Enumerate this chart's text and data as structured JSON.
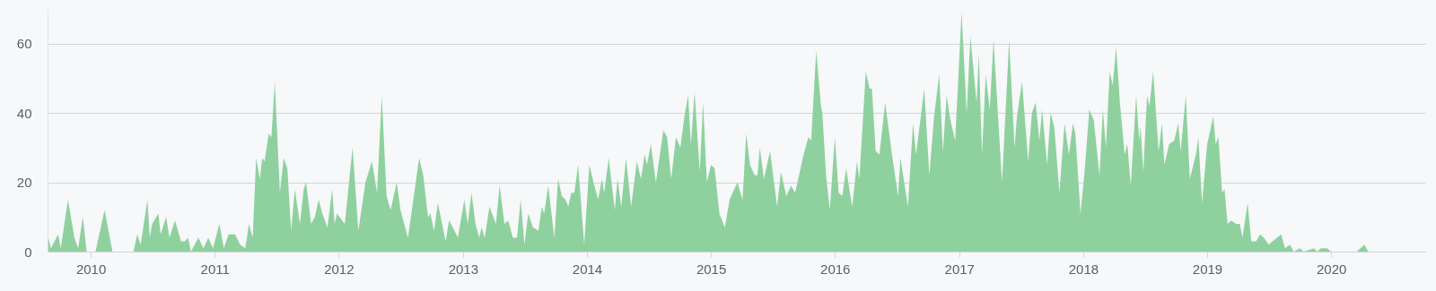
{
  "chart_data": {
    "type": "area",
    "x": [
      "2009-08-29",
      "2009-09-06",
      "2009-09-27",
      "2009-10-05",
      "2009-10-26",
      "2009-11-14",
      "2009-11-25",
      "2009-12-09",
      "2009-12-20",
      "2010-01-15",
      "2010-02-11",
      "2010-03-06",
      "2010-05-07",
      "2010-05-18",
      "2010-05-28",
      "2010-06-17",
      "2010-06-24",
      "2010-07-01",
      "2010-07-19",
      "2010-07-26",
      "2010-08-11",
      "2010-08-21",
      "2010-09-06",
      "2010-09-24",
      "2010-10-05",
      "2010-10-15",
      "2010-10-23",
      "2010-11-14",
      "2010-11-29",
      "2010-12-13",
      "2010-12-27",
      "2011-01-15",
      "2011-01-28",
      "2011-02-11",
      "2011-03-02",
      "2011-03-17",
      "2011-04-01",
      "2011-04-12",
      "2011-04-23",
      "2011-05-03",
      "2011-05-14",
      "2011-05-21",
      "2011-05-28",
      "2011-06-09",
      "2011-06-17",
      "2011-06-27",
      "2011-07-12",
      "2011-07-23",
      "2011-08-03",
      "2011-08-14",
      "2011-08-25",
      "2011-09-09",
      "2011-09-20",
      "2011-09-27",
      "2011-10-12",
      "2011-10-23",
      "2011-11-03",
      "2011-11-14",
      "2011-11-29",
      "2011-12-13",
      "2011-12-20",
      "2011-12-27",
      "2012-01-19",
      "2012-02-11",
      "2012-02-28",
      "2012-03-20",
      "2012-04-08",
      "2012-04-23",
      "2012-05-07",
      "2012-05-21",
      "2012-06-02",
      "2012-06-20",
      "2012-07-01",
      "2012-07-23",
      "2012-08-25",
      "2012-09-06",
      "2012-09-20",
      "2012-09-27",
      "2012-10-08",
      "2012-10-19",
      "2012-11-11",
      "2012-11-21",
      "2012-12-02",
      "2012-12-17",
      "2013-01-05",
      "2013-01-15",
      "2013-01-26",
      "2013-02-07",
      "2013-02-18",
      "2013-02-25",
      "2013-03-06",
      "2013-03-20",
      "2013-04-08",
      "2013-04-19",
      "2013-05-03",
      "2013-05-14",
      "2013-05-28",
      "2013-06-09",
      "2013-06-20",
      "2013-07-01",
      "2013-07-12",
      "2013-07-26",
      "2013-08-11",
      "2013-08-21",
      "2013-08-28",
      "2013-09-09",
      "2013-09-27",
      "2013-10-08",
      "2013-10-19",
      "2013-10-30",
      "2013-11-07",
      "2013-11-16",
      "2013-11-25",
      "2013-12-06",
      "2013-12-24",
      "2014-01-08",
      "2014-01-23",
      "2014-02-03",
      "2014-02-14",
      "2014-02-21",
      "2014-03-06",
      "2014-03-24",
      "2014-04-01",
      "2014-04-12",
      "2014-04-26",
      "2014-05-11",
      "2014-05-28",
      "2014-06-09",
      "2014-06-20",
      "2014-06-27",
      "2014-07-08",
      "2014-07-23",
      "2014-08-14",
      "2014-08-25",
      "2014-09-06",
      "2014-09-20",
      "2014-10-03",
      "2014-10-15",
      "2014-10-26",
      "2014-11-03",
      "2014-11-14",
      "2014-11-29",
      "2014-12-09",
      "2014-12-20",
      "2015-01-01",
      "2015-01-12",
      "2015-01-26",
      "2015-02-11",
      "2015-02-25",
      "2015-03-06",
      "2015-03-20",
      "2015-04-04",
      "2015-04-15",
      "2015-04-26",
      "2015-05-10",
      "2015-05-18",
      "2015-05-25",
      "2015-06-06",
      "2015-06-24",
      "2015-07-15",
      "2015-07-26",
      "2015-08-11",
      "2015-08-25",
      "2015-09-06",
      "2015-10-01",
      "2015-10-15",
      "2015-10-23",
      "2015-11-07",
      "2015-11-21",
      "2015-11-25",
      "2015-12-06",
      "2015-12-17",
      "2016-01-01",
      "2016-01-12",
      "2016-01-23",
      "2016-02-03",
      "2016-02-21",
      "2016-03-06",
      "2016-03-13",
      "2016-04-01",
      "2016-04-12",
      "2016-04-19",
      "2016-04-30",
      "2016-05-11",
      "2016-05-28",
      "2016-06-17",
      "2016-07-05",
      "2016-07-12",
      "2016-08-03",
      "2016-08-18",
      "2016-08-27",
      "2016-09-20",
      "2016-10-05",
      "2016-10-19",
      "2016-11-03",
      "2016-11-14",
      "2016-11-25",
      "2016-12-06",
      "2016-12-20",
      "2017-01-08",
      "2017-01-23",
      "2017-02-03",
      "2017-02-21",
      "2017-02-28",
      "2017-03-09",
      "2017-03-20",
      "2017-04-01",
      "2017-04-12",
      "2017-05-07",
      "2017-05-28",
      "2017-06-13",
      "2017-06-20",
      "2017-07-05",
      "2017-07-23",
      "2017-08-03",
      "2017-08-14",
      "2017-08-25",
      "2017-09-02",
      "2017-09-17",
      "2017-09-27",
      "2017-10-08",
      "2017-10-23",
      "2017-11-07",
      "2017-11-20",
      "2017-12-02",
      "2017-12-09",
      "2017-12-24",
      "2018-01-05",
      "2018-01-19",
      "2018-02-01",
      "2018-02-18",
      "2018-02-28",
      "2018-03-09",
      "2018-03-20",
      "2018-03-29",
      "2018-04-08",
      "2018-04-19",
      "2018-05-03",
      "2018-05-11",
      "2018-05-21",
      "2018-06-06",
      "2018-06-15",
      "2018-06-19",
      "2018-06-27",
      "2018-07-08",
      "2018-07-15",
      "2018-07-26",
      "2018-08-11",
      "2018-08-21",
      "2018-08-28",
      "2018-09-11",
      "2018-09-26",
      "2018-10-08",
      "2018-10-15",
      "2018-10-30",
      "2018-11-11",
      "2018-11-29",
      "2018-12-06",
      "2018-12-17",
      "2019-01-01",
      "2019-01-19",
      "2019-01-26",
      "2019-02-03",
      "2019-02-14",
      "2019-02-21",
      "2019-03-02",
      "2019-03-13",
      "2019-03-27",
      "2019-04-07",
      "2019-04-15",
      "2019-04-30",
      "2019-05-11",
      "2019-05-25",
      "2019-06-06",
      "2019-06-17",
      "2019-07-01",
      "2019-07-12",
      "2019-07-26",
      "2019-08-07",
      "2019-08-18",
      "2019-09-02",
      "2019-09-13",
      "2019-10-01",
      "2019-10-12",
      "2019-11-11",
      "2019-11-21",
      "2019-12-02",
      "2019-12-20",
      "2020-01-01",
      "2020-03-17",
      "2020-03-27",
      "2020-04-08",
      "2020-04-19"
    ],
    "series": [
      {
        "color": "#8fd19e",
        "values": [
          4,
          1,
          5,
          1,
          15,
          4,
          1,
          10,
          0,
          0,
          12,
          0,
          0,
          5,
          2,
          15,
          4,
          8,
          11,
          5,
          10,
          4,
          9,
          3,
          3,
          4,
          0,
          4,
          1,
          4,
          1,
          8,
          1,
          5,
          5,
          2,
          1,
          8,
          4,
          27,
          21,
          27,
          26,
          34,
          33,
          49,
          17,
          27,
          24,
          6,
          18,
          8,
          18,
          20,
          8,
          10,
          15,
          11,
          7,
          18,
          8,
          11,
          8,
          30,
          6,
          20,
          26,
          17,
          45,
          16,
          12,
          20,
          12,
          4,
          27,
          22,
          10,
          11,
          6,
          14,
          3,
          9,
          7,
          4,
          15,
          8,
          17,
          8,
          4,
          7,
          4,
          13,
          8,
          19,
          8,
          9,
          4,
          4,
          15,
          2,
          11,
          7,
          6,
          13,
          11,
          19,
          4,
          21,
          16,
          15,
          13,
          17,
          17,
          25,
          2,
          25,
          19,
          15,
          21,
          17,
          27,
          12,
          21,
          13,
          27,
          13,
          26,
          21,
          28,
          25,
          31,
          20,
          35,
          33,
          21,
          33,
          30,
          39,
          45,
          31,
          46,
          23,
          43,
          20,
          25,
          24,
          11,
          7,
          15,
          17,
          20,
          15,
          34,
          25,
          22,
          22,
          30,
          21,
          29,
          13,
          23,
          16,
          19,
          17,
          28,
          33,
          32,
          58,
          42,
          40,
          22,
          12,
          33,
          17,
          16,
          24,
          13,
          26,
          21,
          52,
          47,
          47,
          29,
          28,
          43,
          28,
          16,
          27,
          13,
          37,
          28,
          47,
          22,
          39,
          51,
          29,
          45,
          38,
          32,
          69,
          40,
          62,
          43,
          57,
          28,
          51,
          41,
          61,
          20,
          61,
          30,
          39,
          49,
          26,
          40,
          43,
          32,
          41,
          25,
          40,
          36,
          17,
          37,
          28,
          37,
          34,
          11,
          23,
          41,
          38,
          22,
          41,
          30,
          52,
          48,
          59,
          43,
          28,
          31,
          19,
          45,
          32,
          36,
          23,
          45,
          42,
          52,
          29,
          37,
          25,
          31,
          32,
          37,
          29,
          45,
          21,
          28,
          33,
          14,
          31,
          39,
          31,
          33,
          17,
          18,
          8,
          9,
          8,
          8,
          4,
          14,
          3,
          3,
          5,
          4,
          2,
          3,
          4,
          5,
          1,
          2,
          0,
          1,
          0,
          1,
          0,
          1,
          1,
          0,
          0,
          1,
          2,
          0
        ]
      }
    ],
    "xlim": [
      "2009-08-27",
      "2020-10-04"
    ],
    "xticks": [
      "2010",
      "2011",
      "2012",
      "2013",
      "2014",
      "2015",
      "2016",
      "2017",
      "2018",
      "2019",
      "2020"
    ],
    "ylim": [
      0,
      70
    ],
    "yticks": [
      0,
      20,
      40,
      60
    ],
    "grid": "y"
  }
}
